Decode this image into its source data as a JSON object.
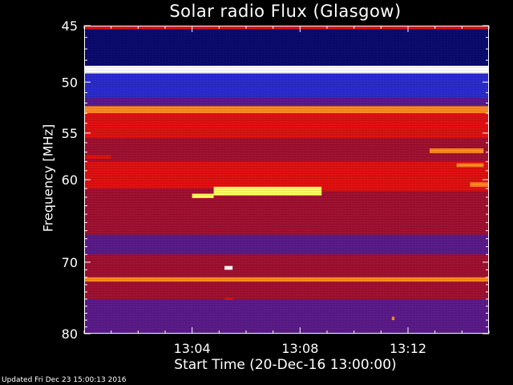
{
  "chart_data": {
    "type": "heatmap",
    "title": "Solar radio Flux (Glasgow)",
    "xlabel": "Start Time (20-Dec-16 13:00:00)",
    "ylabel": "Frequency [MHz]",
    "x_range_minutes": [
      0,
      15.0
    ],
    "y_range_mhz": [
      45,
      80
    ],
    "x_tick_labels": [
      "13:04",
      "13:08",
      "13:12"
    ],
    "x_tick_minutes": [
      4,
      8,
      12
    ],
    "y_tick_values": [
      45,
      50,
      55,
      60,
      70,
      80
    ],
    "colormap": [
      "#0a0a6e",
      "#2a2ad0",
      "#5a1a8a",
      "#a01030",
      "#e01010",
      "#ff8a20",
      "#ffff60",
      "#ffffff"
    ],
    "background_bands": [
      {
        "from_mhz": 45,
        "to_mhz": 45.3,
        "level": 4
      },
      {
        "from_mhz": 45.3,
        "to_mhz": 48.5,
        "level": 0
      },
      {
        "from_mhz": 48.5,
        "to_mhz": 49.2,
        "level": 7
      },
      {
        "from_mhz": 49.2,
        "to_mhz": 51.5,
        "level": 1
      },
      {
        "from_mhz": 51.5,
        "to_mhz": 52.3,
        "level": 2
      },
      {
        "from_mhz": 52.3,
        "to_mhz": 53.0,
        "level": 5
      },
      {
        "from_mhz": 53.0,
        "to_mhz": 55.5,
        "level": 4
      },
      {
        "from_mhz": 55.5,
        "to_mhz": 58.0,
        "level": 3
      },
      {
        "from_mhz": 58.0,
        "to_mhz": 61.0,
        "level": 4
      },
      {
        "from_mhz": 61.0,
        "to_mhz": 64.0,
        "level": 3
      },
      {
        "from_mhz": 64.0,
        "to_mhz": 66.5,
        "level": 3
      },
      {
        "from_mhz": 66.5,
        "to_mhz": 69.0,
        "level": 2
      },
      {
        "from_mhz": 69.0,
        "to_mhz": 72.0,
        "level": 3
      },
      {
        "from_mhz": 72.0,
        "to_mhz": 72.6,
        "level": 5
      },
      {
        "from_mhz": 72.6,
        "to_mhz": 75.0,
        "level": 3
      },
      {
        "from_mhz": 75.0,
        "to_mhz": 80.0,
        "level": 2
      }
    ],
    "features": [
      {
        "t0": 4.0,
        "t1": 4.8,
        "f0": 61.6,
        "f1": 62.1,
        "level": 6
      },
      {
        "t0": 4.8,
        "t1": 8.8,
        "f0": 60.8,
        "f1": 61.8,
        "level": 6
      },
      {
        "t0": 8.8,
        "t1": 15.0,
        "f0": 60.8,
        "f1": 61.3,
        "level": 4
      },
      {
        "t0": 5.2,
        "t1": 5.5,
        "f0": 70.5,
        "f1": 71.0,
        "level": 7
      },
      {
        "t0": 5.2,
        "t1": 5.5,
        "f0": 74.8,
        "f1": 75.1,
        "level": 4
      },
      {
        "t0": 12.8,
        "t1": 14.8,
        "f0": 56.6,
        "f1": 57.1,
        "level": 5
      },
      {
        "t0": 13.8,
        "t1": 14.8,
        "f0": 58.2,
        "f1": 58.6,
        "level": 5
      },
      {
        "t0": 14.3,
        "t1": 15.0,
        "f0": 60.3,
        "f1": 60.8,
        "level": 5
      },
      {
        "t0": 0.0,
        "t1": 1.0,
        "f0": 57.3,
        "f1": 57.7,
        "level": 4
      },
      {
        "t0": 11.4,
        "t1": 11.5,
        "f0": 77.5,
        "f1": 78.0,
        "level": 5
      }
    ]
  },
  "footer": {
    "updated": "Updated Fri Dec 23 15:00:13 2016"
  }
}
